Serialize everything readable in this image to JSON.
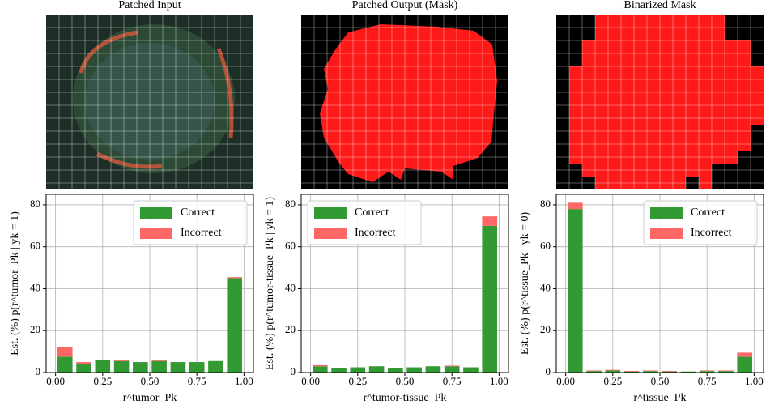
{
  "panels": [
    {
      "title": "Patched Input"
    },
    {
      "title": "Patched Output (Mask)"
    },
    {
      "title": "Binarized Mask"
    }
  ],
  "chart_data": [
    {
      "type": "stacked-histogram",
      "ylabel": "Est. (%) p(r^tumor_Pk | yk = 1)",
      "xlabel": "r^tumor_Pk",
      "bins": [
        0,
        0.1,
        0.2,
        0.3,
        0.4,
        0.5,
        0.6,
        0.7,
        0.8,
        0.9,
        1.0
      ],
      "series": [
        {
          "name": "Correct",
          "color": "#339933",
          "values": [
            7.5,
            4,
            6,
            5.5,
            5,
            5.5,
            5,
            5,
            5.5,
            45
          ]
        },
        {
          "name": "Incorrect",
          "color": "#ff6666",
          "values": [
            4.5,
            1,
            0,
            0.5,
            0,
            0.3,
            0,
            0,
            0,
            0.5
          ]
        }
      ],
      "xlim": [
        -0.05,
        1.05
      ],
      "ylim": [
        0,
        85
      ],
      "xticks": [
        {
          "value": 0,
          "label": "0.00"
        },
        {
          "value": 0.25,
          "label": "0.25"
        },
        {
          "value": 0.5,
          "label": "0.50"
        },
        {
          "value": 0.75,
          "label": "0.75"
        },
        {
          "value": 1,
          "label": "1.00"
        }
      ],
      "yticks": [
        0,
        20,
        40,
        60,
        80
      ],
      "grid": true,
      "legend": "upper-right"
    },
    {
      "type": "stacked-histogram",
      "ylabel": "Est. (%) p(r^tumor-tissue_Pk | yk = 1)",
      "xlabel": "r^tumor-tissue_Pk",
      "bins": [
        0,
        0.1,
        0.2,
        0.3,
        0.4,
        0.5,
        0.6,
        0.7,
        0.8,
        0.9,
        1.0
      ],
      "series": [
        {
          "name": "Correct",
          "color": "#339933",
          "values": [
            3,
            2,
            2.5,
            3,
            2,
            2.5,
            3,
            3,
            2.5,
            70
          ]
        },
        {
          "name": "Incorrect",
          "color": "#ff6666",
          "values": [
            0.5,
            0,
            0,
            0,
            0,
            0,
            0,
            0.3,
            0,
            4.5
          ]
        }
      ],
      "xlim": [
        -0.05,
        1.05
      ],
      "ylim": [
        0,
        85
      ],
      "xticks": [
        {
          "value": 0,
          "label": "0.00"
        },
        {
          "value": 0.25,
          "label": "0.25"
        },
        {
          "value": 0.5,
          "label": "0.50"
        },
        {
          "value": 0.75,
          "label": "0.75"
        },
        {
          "value": 1,
          "label": "1.00"
        }
      ],
      "yticks": [
        0,
        20,
        40,
        60,
        80
      ],
      "grid": true,
      "legend": "upper-left"
    },
    {
      "type": "stacked-histogram",
      "ylabel": "Est. (%) p(r^tissue_Pk | yk = 0)",
      "xlabel": "r^tissue_Pk",
      "bins": [
        0,
        0.1,
        0.2,
        0.3,
        0.4,
        0.5,
        0.6,
        0.7,
        0.8,
        0.9,
        1.0
      ],
      "series": [
        {
          "name": "Correct",
          "color": "#339933",
          "values": [
            78,
            0.7,
            1,
            0.5,
            0.7,
            0.5,
            0.5,
            0.7,
            0.7,
            7.5
          ]
        },
        {
          "name": "Incorrect",
          "color": "#ff6666",
          "values": [
            3,
            0.3,
            0.3,
            0.3,
            0.3,
            0.3,
            0,
            0.3,
            0.3,
            2
          ]
        }
      ],
      "xlim": [
        -0.05,
        1.05
      ],
      "ylim": [
        0,
        85
      ],
      "xticks": [
        {
          "value": 0,
          "label": "0.00"
        },
        {
          "value": 0.25,
          "label": "0.25"
        },
        {
          "value": 0.5,
          "label": "0.50"
        },
        {
          "value": 0.75,
          "label": "0.75"
        },
        {
          "value": 1,
          "label": "1.00"
        }
      ],
      "yticks": [
        0,
        20,
        40,
        60,
        80
      ],
      "grid": true,
      "legend": "upper-right"
    }
  ]
}
